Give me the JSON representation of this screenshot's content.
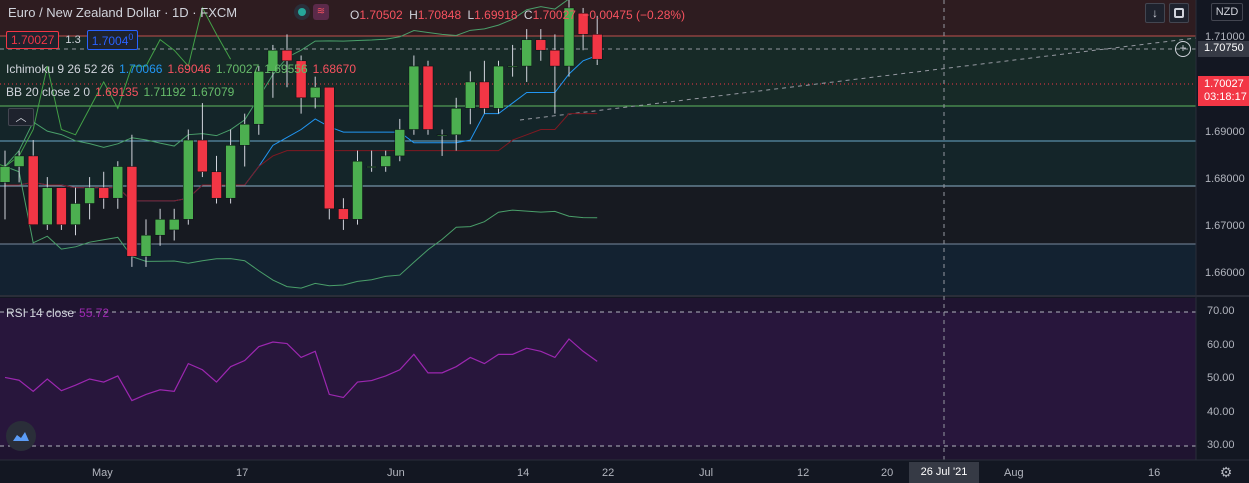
{
  "header": {
    "symbol": "Euro / New Zealand Dollar",
    "interval": "1D",
    "exchange": "FXCM",
    "ohlc": {
      "open_label": "O",
      "open": "1.70502",
      "high_label": "H",
      "high": "1.70848",
      "low_label": "L",
      "low": "1.69918",
      "close_label": "C",
      "close": "1.70027",
      "change": "−0.00475 (−0.28%)"
    },
    "bid": "1.70027",
    "spread": "1.3",
    "ask_left": "1.7004",
    "ask_right": "0",
    "currency": "NZD"
  },
  "indicators": {
    "ichimoku": {
      "name": "Ichimoku 9 26 52 26",
      "v1": "1.70066",
      "v2": "1.69046",
      "v3": "1.70027",
      "v4": "1.69556",
      "v5": "1.68670"
    },
    "bb": {
      "name": "BB 20 close 2 0",
      "v1": "1.69135",
      "v2": "1.71192",
      "v3": "1.67079"
    },
    "rsi": {
      "name": "RSI 14 close",
      "value": "55.72"
    }
  },
  "price_axis": {
    "ticks": [
      "1.71000",
      "1.70750",
      "1.70027",
      "1.69000",
      "1.68000",
      "1.67000",
      "1.66000"
    ],
    "crosshair_price": "1.70750",
    "last_price": "1.70027",
    "countdown": "03:18:17"
  },
  "rsi_axis": {
    "ticks": [
      "70.00",
      "60.00",
      "50.00",
      "40.00",
      "30.00"
    ]
  },
  "time_axis": {
    "ticks": [
      "May",
      "17",
      "Jun",
      "14",
      "22",
      "Jul",
      "12",
      "20",
      "Aug",
      "16"
    ],
    "crosshair_date": "26 Jul '21"
  },
  "colors": {
    "background": "#131722",
    "up": "#4caf50",
    "down": "#f23645",
    "rsi_line": "#9c27b0",
    "rsi_band": "#2a1740",
    "price_up_band": "#1b3a2b",
    "price_down_band": "#3a1f1f",
    "conversion": "#2196f3",
    "base": "#801922",
    "lagging": "#43a047",
    "bb": "#4a9f6a"
  },
  "chart_data": {
    "type": "candlestick",
    "candles": [
      {
        "o": 1.677,
        "h": 1.683,
        "l": 1.67,
        "c": 1.68
      },
      {
        "o": 1.68,
        "h": 1.683,
        "l": 1.677,
        "c": 1.682
      },
      {
        "o": 1.682,
        "h": 1.685,
        "l": 1.669,
        "c": 1.669
      },
      {
        "o": 1.669,
        "h": 1.678,
        "l": 1.668,
        "c": 1.676
      },
      {
        "o": 1.676,
        "h": 1.676,
        "l": 1.668,
        "c": 1.669
      },
      {
        "o": 1.669,
        "h": 1.676,
        "l": 1.667,
        "c": 1.673
      },
      {
        "o": 1.673,
        "h": 1.678,
        "l": 1.67,
        "c": 1.676
      },
      {
        "o": 1.676,
        "h": 1.679,
        "l": 1.672,
        "c": 1.674
      },
      {
        "o": 1.674,
        "h": 1.681,
        "l": 1.672,
        "c": 1.68
      },
      {
        "o": 1.68,
        "h": 1.686,
        "l": 1.661,
        "c": 1.663
      },
      {
        "o": 1.663,
        "h": 1.67,
        "l": 1.661,
        "c": 1.667
      },
      {
        "o": 1.667,
        "h": 1.672,
        "l": 1.665,
        "c": 1.67
      },
      {
        "o": 1.668,
        "h": 1.672,
        "l": 1.666,
        "c": 1.67
      },
      {
        "o": 1.67,
        "h": 1.687,
        "l": 1.669,
        "c": 1.685
      },
      {
        "o": 1.685,
        "h": 1.692,
        "l": 1.678,
        "c": 1.679
      },
      {
        "o": 1.679,
        "h": 1.682,
        "l": 1.673,
        "c": 1.674
      },
      {
        "o": 1.674,
        "h": 1.687,
        "l": 1.673,
        "c": 1.684
      },
      {
        "o": 1.684,
        "h": 1.69,
        "l": 1.68,
        "c": 1.688
      },
      {
        "o": 1.688,
        "h": 1.699,
        "l": 1.686,
        "c": 1.698
      },
      {
        "o": 1.698,
        "h": 1.703,
        "l": 1.693,
        "c": 1.702
      },
      {
        "o": 1.702,
        "h": 1.705,
        "l": 1.695,
        "c": 1.7
      },
      {
        "o": 1.7,
        "h": 1.701,
        "l": 1.69,
        "c": 1.693
      },
      {
        "o": 1.693,
        "h": 1.697,
        "l": 1.691,
        "c": 1.695
      },
      {
        "o": 1.695,
        "h": 1.695,
        "l": 1.67,
        "c": 1.672
      },
      {
        "o": 1.672,
        "h": 1.674,
        "l": 1.668,
        "c": 1.67
      },
      {
        "o": 1.67,
        "h": 1.683,
        "l": 1.669,
        "c": 1.681
      },
      {
        "o": 1.68,
        "h": 1.683,
        "l": 1.679,
        "c": 1.68
      },
      {
        "o": 1.68,
        "h": 1.683,
        "l": 1.679,
        "c": 1.682
      },
      {
        "o": 1.682,
        "h": 1.689,
        "l": 1.681,
        "c": 1.687
      },
      {
        "o": 1.687,
        "h": 1.701,
        "l": 1.686,
        "c": 1.699
      },
      {
        "o": 1.699,
        "h": 1.7,
        "l": 1.686,
        "c": 1.687
      },
      {
        "o": 1.686,
        "h": 1.687,
        "l": 1.682,
        "c": 1.686
      },
      {
        "o": 1.686,
        "h": 1.693,
        "l": 1.683,
        "c": 1.691
      },
      {
        "o": 1.691,
        "h": 1.698,
        "l": 1.688,
        "c": 1.696
      },
      {
        "o": 1.696,
        "h": 1.7,
        "l": 1.69,
        "c": 1.691
      },
      {
        "o": 1.691,
        "h": 1.7,
        "l": 1.69,
        "c": 1.699
      },
      {
        "o": 1.699,
        "h": 1.703,
        "l": 1.697,
        "c": 1.699
      },
      {
        "o": 1.699,
        "h": 1.706,
        "l": 1.696,
        "c": 1.704
      },
      {
        "o": 1.704,
        "h": 1.706,
        "l": 1.7,
        "c": 1.702
      },
      {
        "o": 1.702,
        "h": 1.705,
        "l": 1.69,
        "c": 1.699
      },
      {
        "o": 1.699,
        "h": 1.712,
        "l": 1.697,
        "c": 1.71
      },
      {
        "o": 1.709,
        "h": 1.71,
        "l": 1.702,
        "c": 1.705
      },
      {
        "o": 1.705,
        "h": 1.7085,
        "l": 1.6992,
        "c": 1.7003
      }
    ],
    "rsi": [
      50.5,
      49.6,
      46.0,
      50.0,
      46.2,
      48.0,
      50.0,
      49.0,
      51.0,
      43.0,
      45.0,
      46.5,
      46.0,
      55.0,
      53.0,
      49.0,
      54.0,
      56.0,
      60.5,
      62.0,
      61.5,
      57.0,
      59.0,
      45.0,
      44.0,
      49.0,
      49.5,
      51.0,
      53.0,
      58.0,
      52.0,
      52.0,
      54.0,
      57.0,
      55.0,
      58.0,
      58.0,
      60.0,
      59.0,
      57.0,
      63.0,
      59.0,
      55.72
    ],
    "price_range": [
      1.6555,
      1.7115
    ],
    "rsi_range": [
      25,
      75
    ],
    "rsi_levels": [
      70,
      30
    ]
  }
}
